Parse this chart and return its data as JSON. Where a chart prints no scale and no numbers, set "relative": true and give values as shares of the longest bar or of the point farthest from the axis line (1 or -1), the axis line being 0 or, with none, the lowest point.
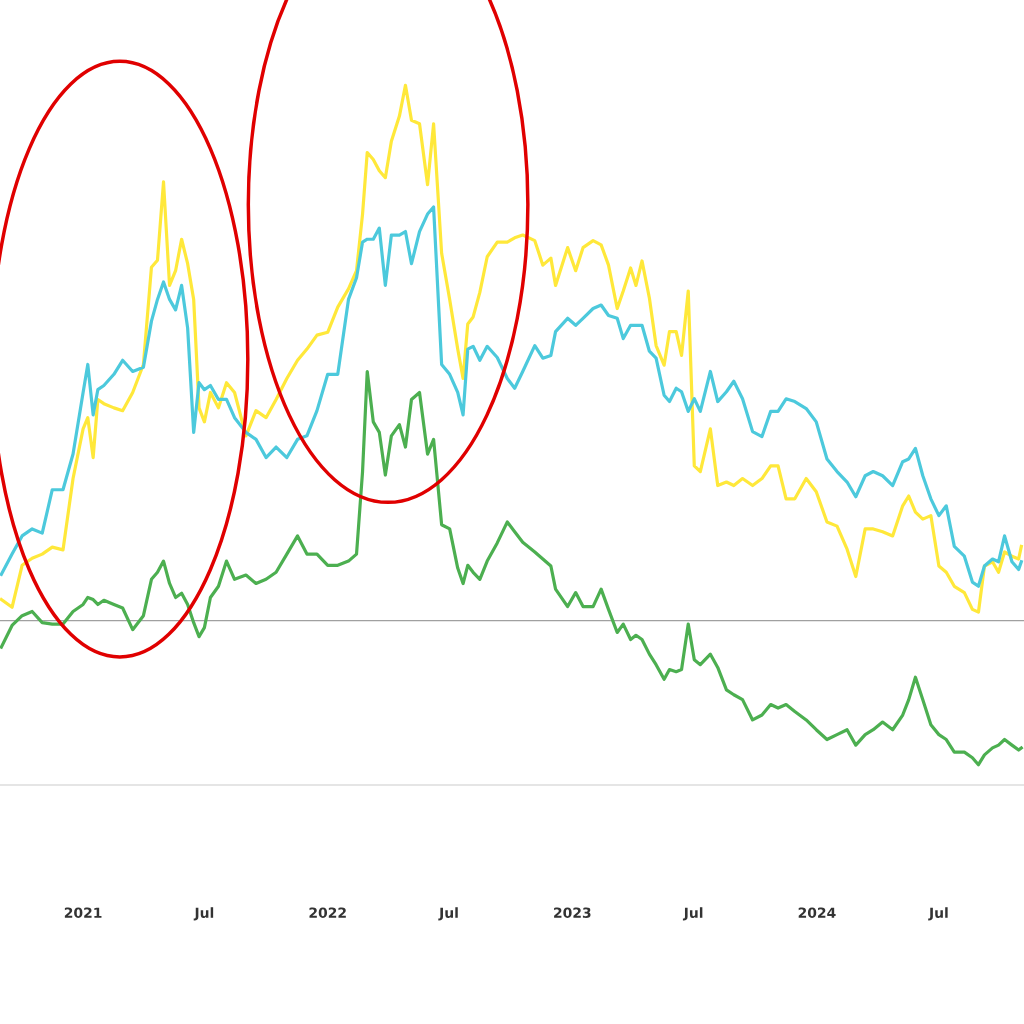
{
  "chart_data": {
    "type": "line",
    "relative": true,
    "grid": false,
    "marker": "none",
    "line_style": "solid",
    "x": [
      "2020-09-01",
      "2020-09-17",
      "2020-10-02",
      "2020-10-17",
      "2020-11-01",
      "2020-11-16",
      "2020-12-02",
      "2020-12-17",
      "2021-01-01",
      "2021-01-08",
      "2021-01-16",
      "2021-01-23",
      "2021-02-01",
      "2021-02-16",
      "2021-03-01",
      "2021-03-16",
      "2021-04-01",
      "2021-04-13",
      "2021-04-22",
      "2021-05-01",
      "2021-05-10",
      "2021-05-19",
      "2021-05-28",
      "2021-06-06",
      "2021-06-15",
      "2021-06-23",
      "2021-07-01",
      "2021-07-10",
      "2021-07-22",
      "2021-08-03",
      "2021-08-15",
      "2021-09-01",
      "2021-09-16",
      "2021-10-01",
      "2021-10-16",
      "2021-11-01",
      "2021-11-17",
      "2021-12-01",
      "2021-12-16",
      "2022-01-01",
      "2022-01-16",
      "2022-02-01",
      "2022-02-13",
      "2022-02-22",
      "2022-03-01",
      "2022-03-10",
      "2022-03-19",
      "2022-03-28",
      "2022-04-06",
      "2022-04-18",
      "2022-04-27",
      "2022-05-06",
      "2022-05-18",
      "2022-05-30",
      "2022-06-08",
      "2022-06-20",
      "2022-07-02",
      "2022-07-14",
      "2022-07-22",
      "2022-07-29",
      "2022-08-06",
      "2022-08-16",
      "2022-08-27",
      "2022-09-11",
      "2022-09-26",
      "2022-10-07",
      "2022-10-19",
      "2022-11-06",
      "2022-11-18",
      "2022-11-30",
      "2022-12-07",
      "2022-12-25",
      "2023-01-06",
      "2023-01-17",
      "2023-02-01",
      "2023-02-13",
      "2023-02-24",
      "2023-03-09",
      "2023-03-18",
      "2023-03-29",
      "2023-04-06",
      "2023-04-15",
      "2023-04-26",
      "2023-05-06",
      "2023-05-18",
      "2023-05-26",
      "2023-06-05",
      "2023-06-13",
      "2023-06-23",
      "2023-07-02",
      "2023-07-11",
      "2023-07-26",
      "2023-08-06",
      "2023-08-19",
      "2023-08-30",
      "2023-09-12",
      "2023-09-27",
      "2023-10-11",
      "2023-10-24",
      "2023-11-04",
      "2023-11-16",
      "2023-11-29",
      "2023-12-16",
      "2023-12-31",
      "2024-01-16",
      "2024-01-31",
      "2024-02-15",
      "2024-02-28",
      "2024-03-13",
      "2024-03-25",
      "2024-04-08",
      "2024-04-23",
      "2024-05-08",
      "2024-05-17",
      "2024-05-27",
      "2024-06-07",
      "2024-06-19",
      "2024-07-01",
      "2024-07-12",
      "2024-07-24",
      "2024-08-08",
      "2024-08-20",
      "2024-08-29",
      "2024-09-07",
      "2024-09-19",
      "2024-09-28",
      "2024-10-07",
      "2024-10-18",
      "2024-10-28",
      "2024-11-01"
    ],
    "series": [
      {
        "color": "#ffe83a",
        "values": [
          0.265,
          0.254,
          0.314,
          0.324,
          0.33,
          0.34,
          0.336,
          0.438,
          0.509,
          0.525,
          0.468,
          0.551,
          0.545,
          0.539,
          0.535,
          0.561,
          0.601,
          0.74,
          0.75,
          0.862,
          0.714,
          0.735,
          0.78,
          0.745,
          0.694,
          0.539,
          0.519,
          0.561,
          0.539,
          0.575,
          0.561,
          0.499,
          0.535,
          0.525,
          0.551,
          0.581,
          0.607,
          0.623,
          0.643,
          0.647,
          0.683,
          0.709,
          0.735,
          0.816,
          0.904,
          0.894,
          0.878,
          0.868,
          0.92,
          0.956,
          1.0,
          0.95,
          0.945,
          0.858,
          0.945,
          0.76,
          0.694,
          0.623,
          0.581,
          0.659,
          0.669,
          0.704,
          0.755,
          0.776,
          0.776,
          0.782,
          0.786,
          0.778,
          0.743,
          0.753,
          0.714,
          0.768,
          0.735,
          0.768,
          0.778,
          0.772,
          0.743,
          0.681,
          0.706,
          0.739,
          0.714,
          0.749,
          0.696,
          0.628,
          0.6,
          0.648,
          0.648,
          0.614,
          0.706,
          0.456,
          0.448,
          0.509,
          0.428,
          0.433,
          0.428,
          0.438,
          0.428,
          0.438,
          0.456,
          0.456,
          0.409,
          0.409,
          0.438,
          0.419,
          0.376,
          0.37,
          0.337,
          0.298,
          0.366,
          0.366,
          0.362,
          0.356,
          0.399,
          0.413,
          0.39,
          0.38,
          0.385,
          0.313,
          0.304,
          0.284,
          0.275,
          0.251,
          0.247,
          0.313,
          0.319,
          0.304,
          0.333,
          0.327,
          0.323,
          0.341
        ]
      },
      {
        "color": "#4cc9dc",
        "values": [
          0.301,
          0.33,
          0.356,
          0.366,
          0.36,
          0.422,
          0.422,
          0.473,
          0.561,
          0.601,
          0.529,
          0.565,
          0.571,
          0.587,
          0.607,
          0.591,
          0.597,
          0.663,
          0.694,
          0.719,
          0.694,
          0.679,
          0.714,
          0.653,
          0.504,
          0.575,
          0.565,
          0.571,
          0.551,
          0.551,
          0.525,
          0.504,
          0.494,
          0.468,
          0.483,
          0.468,
          0.494,
          0.499,
          0.535,
          0.587,
          0.587,
          0.694,
          0.725,
          0.776,
          0.78,
          0.78,
          0.796,
          0.714,
          0.786,
          0.786,
          0.791,
          0.745,
          0.791,
          0.816,
          0.826,
          0.601,
          0.587,
          0.561,
          0.529,
          0.623,
          0.627,
          0.607,
          0.627,
          0.611,
          0.581,
          0.567,
          0.591,
          0.628,
          0.61,
          0.614,
          0.648,
          0.667,
          0.657,
          0.667,
          0.681,
          0.686,
          0.671,
          0.667,
          0.638,
          0.657,
          0.657,
          0.657,
          0.62,
          0.61,
          0.557,
          0.548,
          0.567,
          0.562,
          0.534,
          0.552,
          0.534,
          0.591,
          0.548,
          0.562,
          0.577,
          0.552,
          0.505,
          0.498,
          0.534,
          0.534,
          0.552,
          0.548,
          0.538,
          0.519,
          0.466,
          0.448,
          0.433,
          0.412,
          0.442,
          0.448,
          0.442,
          0.428,
          0.462,
          0.466,
          0.481,
          0.442,
          0.409,
          0.385,
          0.399,
          0.341,
          0.327,
          0.29,
          0.284,
          0.313,
          0.323,
          0.319,
          0.356,
          0.319,
          0.308,
          0.319
        ]
      },
      {
        "color": "#4caf50",
        "values": [
          0.197,
          0.228,
          0.242,
          0.248,
          0.232,
          0.23,
          0.23,
          0.248,
          0.258,
          0.268,
          0.265,
          0.258,
          0.264,
          0.258,
          0.253,
          0.222,
          0.242,
          0.294,
          0.304,
          0.32,
          0.288,
          0.268,
          0.274,
          0.258,
          0.232,
          0.212,
          0.225,
          0.268,
          0.284,
          0.32,
          0.294,
          0.3,
          0.288,
          0.294,
          0.304,
          0.33,
          0.356,
          0.33,
          0.33,
          0.314,
          0.314,
          0.32,
          0.33,
          0.448,
          0.591,
          0.519,
          0.504,
          0.443,
          0.499,
          0.515,
          0.483,
          0.551,
          0.561,
          0.473,
          0.494,
          0.372,
          0.366,
          0.31,
          0.288,
          0.314,
          0.304,
          0.294,
          0.32,
          0.346,
          0.376,
          0.362,
          0.347,
          0.333,
          0.323,
          0.313,
          0.28,
          0.255,
          0.275,
          0.255,
          0.255,
          0.28,
          0.251,
          0.218,
          0.23,
          0.208,
          0.214,
          0.208,
          0.187,
          0.172,
          0.151,
          0.165,
          0.162,
          0.165,
          0.23,
          0.179,
          0.172,
          0.187,
          0.168,
          0.136,
          0.129,
          0.122,
          0.093,
          0.1,
          0.115,
          0.11,
          0.115,
          0.105,
          0.093,
          0.079,
          0.065,
          0.072,
          0.079,
          0.057,
          0.072,
          0.079,
          0.09,
          0.079,
          0.1,
          0.122,
          0.154,
          0.122,
          0.086,
          0.072,
          0.065,
          0.047,
          0.047,
          0.039,
          0.029,
          0.043,
          0.053,
          0.057,
          0.065,
          0.057,
          0.05,
          0.053
        ]
      }
    ],
    "xlim": [
      "2020-08-30",
      "2024-11-05"
    ],
    "xticks": [
      {
        "value": "2021-01-01",
        "label": "2021"
      },
      {
        "value": "2021-07-01",
        "label": "Jul"
      },
      {
        "value": "2022-01-01",
        "label": "2022"
      },
      {
        "value": "2022-07-01",
        "label": "Jul"
      },
      {
        "value": "2023-01-01",
        "label": "2023"
      },
      {
        "value": "2023-07-01",
        "label": "Jul"
      },
      {
        "value": "2024-01-01",
        "label": "2024"
      },
      {
        "value": "2024-07-01",
        "label": "Jul"
      }
    ],
    "ref_lines": [
      {
        "axis": "y",
        "value": 0.235,
        "color": "#a0a0a0"
      }
    ]
  }
}
